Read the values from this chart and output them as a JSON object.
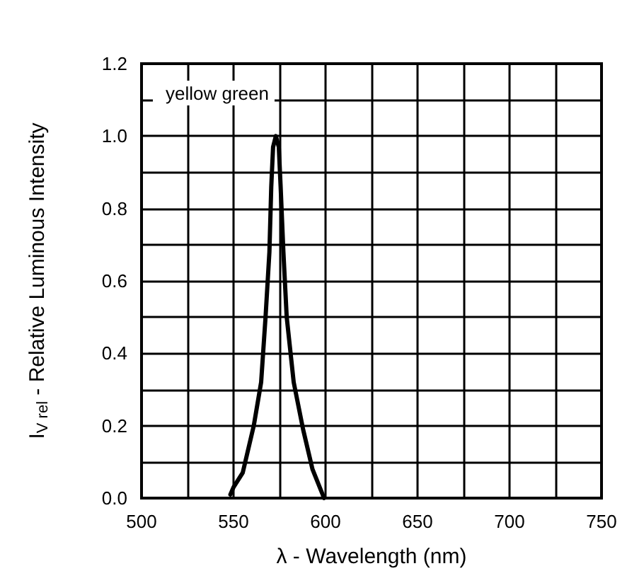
{
  "chart_data": {
    "type": "line",
    "xlabel": "λ - Wavelength (nm)",
    "ylabel": "I$_{V rel}$ - Relative Luminous Intensity",
    "series": [
      {
        "name": "yellow green",
        "color": "#000000",
        "x": [
          548.3,
          550,
          555,
          561,
          565,
          567.4,
          569.5,
          570.5,
          571.5,
          573,
          574.6,
          575.6,
          577.1,
          578.9,
          582.7,
          587.8,
          592.9,
          599.2
        ],
        "values": [
          0.01,
          0.03,
          0.07,
          0.2,
          0.32,
          0.5,
          0.68,
          0.86,
          0.97,
          1.0,
          0.97,
          0.86,
          0.68,
          0.5,
          0.32,
          0.19,
          0.08,
          0.0
        ]
      }
    ],
    "xlim": [
      500,
      750
    ],
    "xticks": [
      500,
      {
        "value": 525,
        "label": null
      },
      550,
      {
        "value": 575,
        "label": null
      },
      600,
      {
        "value": 625,
        "label": null
      },
      650,
      {
        "value": 675,
        "label": null
      },
      700,
      {
        "value": 725,
        "label": null
      },
      750
    ],
    "ylim": [
      0,
      1.2
    ],
    "yticks": [
      {
        "value": 0,
        "label": "0.0"
      },
      {
        "value": 0.1,
        "label": null
      },
      {
        "value": 0.2,
        "label": "0.2"
      },
      {
        "value": 0.3,
        "label": null
      },
      {
        "value": 0.4,
        "label": "0.4"
      },
      {
        "value": 0.5,
        "label": null
      },
      {
        "value": 0.6,
        "label": "0.6"
      },
      {
        "value": 0.7,
        "label": null
      },
      {
        "value": 0.8,
        "label": "0.8"
      },
      {
        "value": 0.9,
        "label": null
      },
      {
        "value": 1.0,
        "label": "1.0"
      },
      {
        "value": 1.1,
        "label": null
      },
      {
        "value": 1.2,
        "label": "1.2"
      }
    ],
    "grid": true,
    "legend": "top left",
    "marker": "none",
    "line_style": "solid"
  }
}
